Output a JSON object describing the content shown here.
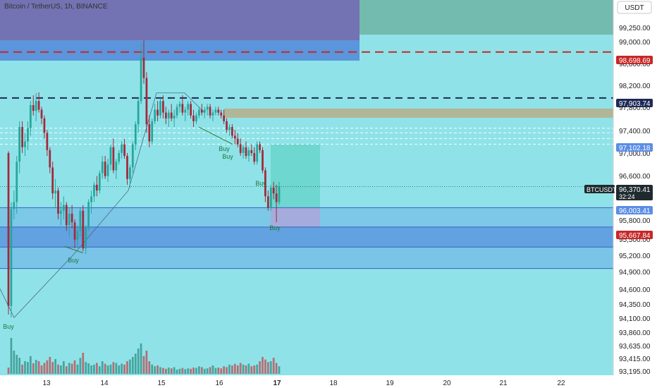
{
  "header": {
    "title": "Bitcoin / TetherUS, 1h, BINANCE"
  },
  "currency_button": {
    "label": "USDT"
  },
  "colors": {
    "background": "#8fe3e8",
    "up_candle": "#26a69a",
    "down_candle": "#a3283a",
    "volume_up": "#2f8f85",
    "volume_down": "#c0484e",
    "red_dash": "#c62828",
    "navy_dash": "#1e2a55",
    "zone_purple": "#6a4ca0",
    "zone_blue": "#4a7bd8",
    "zone_teal_dark": "#6fb3a4",
    "zone_olive": "#b5b08f",
    "zone_sky": "#5f9de6"
  },
  "chart_data": {
    "type": "candlestick",
    "symbol": "BTCUSDT",
    "x_axis_labels": [
      "13",
      "14",
      "15",
      "16",
      "17",
      "18",
      "19",
      "20",
      "21",
      "22"
    ],
    "y_axis_labels": [
      "99,250.00",
      "99,000.00",
      "98,800.00",
      "98,200.00",
      "97,800.00",
      "97,400.00",
      "97,000.00",
      "96,600.00",
      "95,800.00",
      "95,500.00",
      "95,200.00",
      "94,900.00",
      "94,600.00",
      "94,350.00",
      "94,100.00",
      "93,860.00",
      "93,635.00",
      "93,415.00",
      "93,195.00"
    ],
    "y_range": [
      93100,
      99600
    ],
    "price_tags": [
      {
        "label": "98,698.69",
        "value": 98698.69,
        "style": "red"
      },
      {
        "label": "97,903.74",
        "value": 97903.74,
        "style": "navy"
      },
      {
        "label": "97,102.18",
        "value": 97102.18,
        "style": "blue"
      },
      {
        "label": "96,370.41",
        "value": 96370.41,
        "style": "dark",
        "sub": "32:24",
        "name": "BTCUSDT"
      },
      {
        "label": "96,003.41",
        "value": 96003.41,
        "style": "blue"
      },
      {
        "label": "95,667.84",
        "value": 95667.84,
        "style": "red"
      }
    ],
    "signals": [
      {
        "label": "Buy",
        "near": "12",
        "price": 94050
      },
      {
        "label": "Buy",
        "near": "13.5",
        "price": 95180
      },
      {
        "label": "Buy",
        "near": "16.1",
        "price": 97050
      },
      {
        "label": "Buy",
        "near": "16.15",
        "price": 96950
      },
      {
        "label": "Buy",
        "near": "16.85",
        "price": 96500
      },
      {
        "label": "Buy",
        "near": "17",
        "price": 95690
      }
    ],
    "candles": [
      [
        96950,
        96980,
        94150,
        94300
      ],
      [
        94300,
        96100,
        94100,
        95980
      ],
      [
        95980,
        96300,
        95800,
        96100
      ],
      [
        96100,
        96900,
        95900,
        96800
      ],
      [
        96800,
        97500,
        96600,
        97400
      ],
      [
        97400,
        97500,
        96950,
        97050
      ],
      [
        97050,
        97300,
        96900,
        97150
      ],
      [
        97150,
        97500,
        97000,
        97380
      ],
      [
        97380,
        97850,
        97250,
        97780
      ],
      [
        97780,
        97950,
        97600,
        97680
      ],
      [
        97680,
        97990,
        97500,
        97850
      ],
      [
        97850,
        98000,
        97650,
        97700
      ],
      [
        97700,
        97750,
        97450,
        97550
      ],
      [
        97550,
        97600,
        97200,
        97300
      ],
      [
        97300,
        97350,
        96900,
        97000
      ],
      [
        97000,
        97050,
        96600,
        96700
      ],
      [
        96700,
        96800,
        96150,
        96250
      ],
      [
        96250,
        96500,
        96000,
        96300
      ],
      [
        96300,
        96350,
        95800,
        95900
      ],
      [
        95900,
        96100,
        95700,
        95950
      ],
      [
        95950,
        96200,
        95800,
        96050
      ],
      [
        96050,
        96100,
        95600,
        95700
      ],
      [
        95700,
        96000,
        95500,
        95900
      ],
      [
        95900,
        96050,
        95650,
        95750
      ],
      [
        95750,
        95800,
        95300,
        95450
      ],
      [
        95450,
        95700,
        95300,
        95600
      ],
      [
        95600,
        96000,
        95500,
        95950
      ],
      [
        95950,
        96050,
        95250,
        95300
      ],
      [
        95300,
        95700,
        95200,
        95650
      ],
      [
        95650,
        96150,
        95600,
        96100
      ],
      [
        96100,
        96300,
        95900,
        96200
      ],
      [
        96200,
        96450,
        96100,
        96400
      ],
      [
        96400,
        96550,
        96200,
        96300
      ],
      [
        96300,
        96650,
        96250,
        96600
      ],
      [
        96600,
        96900,
        96500,
        96800
      ],
      [
        96800,
        96900,
        96500,
        96550
      ],
      [
        96550,
        96850,
        96450,
        96750
      ],
      [
        96750,
        97100,
        96650,
        97050
      ],
      [
        97050,
        97200,
        96600,
        96650
      ],
      [
        96650,
        96850,
        96500,
        96800
      ],
      [
        96800,
        97000,
        96750,
        96950
      ],
      [
        96950,
        97150,
        96850,
        97100
      ],
      [
        97100,
        97200,
        96850,
        96900
      ],
      [
        96900,
        96950,
        96400,
        96500
      ],
      [
        96500,
        96750,
        96350,
        96700
      ],
      [
        96700,
        97150,
        96600,
        97100
      ],
      [
        97100,
        97500,
        97000,
        97450
      ],
      [
        97450,
        97900,
        97300,
        97850
      ],
      [
        97850,
        98850,
        97800,
        98600
      ],
      [
        98600,
        98900,
        98150,
        98250
      ],
      [
        98250,
        98350,
        97300,
        97450
      ],
      [
        97450,
        97600,
        97050,
        97150
      ],
      [
        97150,
        97550,
        97100,
        97500
      ],
      [
        97500,
        97800,
        97450,
        97700
      ],
      [
        97700,
        97850,
        97500,
        97600
      ],
      [
        97600,
        97900,
        97550,
        97850
      ],
      [
        97850,
        97950,
        97550,
        97650
      ],
      [
        97650,
        97750,
        97450,
        97550
      ],
      [
        97550,
        97700,
        97400,
        97650
      ],
      [
        97650,
        97800,
        97500,
        97550
      ],
      [
        97550,
        97700,
        97400,
        97600
      ],
      [
        97600,
        97800,
        97550,
        97750
      ],
      [
        97750,
        97850,
        97650,
        97800
      ],
      [
        97800,
        97950,
        97600,
        97650
      ],
      [
        97650,
        97750,
        97500,
        97700
      ],
      [
        97700,
        97850,
        97600,
        97800
      ],
      [
        97800,
        97850,
        97550,
        97600
      ],
      [
        97600,
        97700,
        97400,
        97500
      ],
      [
        97500,
        97650,
        97450,
        97600
      ],
      [
        97600,
        97750,
        97550,
        97700
      ],
      [
        97700,
        97800,
        97600,
        97650
      ],
      [
        97650,
        97750,
        97550,
        97700
      ],
      [
        97700,
        97800,
        97600,
        97750
      ],
      [
        97750,
        97800,
        97550,
        97600
      ],
      [
        97600,
        97700,
        97500,
        97650
      ],
      [
        97650,
        97750,
        97600,
        97700
      ],
      [
        97700,
        97750,
        97600,
        97650
      ],
      [
        97650,
        97700,
        97550,
        97600
      ],
      [
        97600,
        97700,
        97450,
        97500
      ],
      [
        97500,
        97550,
        97300,
        97350
      ],
      [
        97350,
        97450,
        97250,
        97400
      ],
      [
        97400,
        97450,
        97200,
        97250
      ],
      [
        97250,
        97350,
        97100,
        97200
      ],
      [
        97200,
        97300,
        97050,
        97100
      ],
      [
        97100,
        97200,
        96900,
        96950
      ],
      [
        96950,
        97100,
        96850,
        97050
      ],
      [
        97050,
        97150,
        96850,
        96900
      ],
      [
        96900,
        97050,
        96800,
        97000
      ],
      [
        97000,
        97100,
        96900,
        96950
      ],
      [
        96950,
        97050,
        96750,
        96800
      ],
      [
        96800,
        97150,
        96750,
        97100
      ],
      [
        97100,
        97150,
        96950,
        97000
      ],
      [
        97000,
        97050,
        96600,
        96650
      ],
      [
        96650,
        96700,
        96100,
        96200
      ],
      [
        96200,
        96300,
        95950,
        96000
      ],
      [
        96000,
        96400,
        95950,
        96350
      ],
      [
        96350,
        96450,
        96150,
        96250
      ],
      [
        96250,
        96400,
        95750,
        96100
      ],
      [
        96100,
        96450,
        96050,
        96370
      ]
    ],
    "volumes": [
      0.15,
      0.85,
      0.55,
      0.45,
      0.38,
      0.22,
      0.3,
      0.28,
      0.42,
      0.25,
      0.33,
      0.3,
      0.2,
      0.26,
      0.32,
      0.4,
      0.28,
      0.35,
      0.22,
      0.2,
      0.3,
      0.18,
      0.26,
      0.24,
      0.32,
      0.22,
      0.38,
      0.5,
      0.28,
      0.25,
      0.2,
      0.22,
      0.26,
      0.18,
      0.3,
      0.24,
      0.2,
      0.22,
      0.28,
      0.26,
      0.2,
      0.24,
      0.22,
      0.3,
      0.34,
      0.4,
      0.48,
      0.6,
      0.72,
      0.42,
      0.55,
      0.3,
      0.22,
      0.18,
      0.2,
      0.16,
      0.14,
      0.12,
      0.15,
      0.13,
      0.16,
      0.1,
      0.12,
      0.14,
      0.11,
      0.13,
      0.12,
      0.15,
      0.14,
      0.18,
      0.16,
      0.12,
      0.13,
      0.16,
      0.2,
      0.14,
      0.15,
      0.13,
      0.18,
      0.16,
      0.22,
      0.2,
      0.24,
      0.2,
      0.26,
      0.22,
      0.2,
      0.24,
      0.18,
      0.2,
      0.22,
      0.3,
      0.4,
      0.34,
      0.28,
      0.3,
      0.38,
      0.26,
      0.18
    ]
  }
}
